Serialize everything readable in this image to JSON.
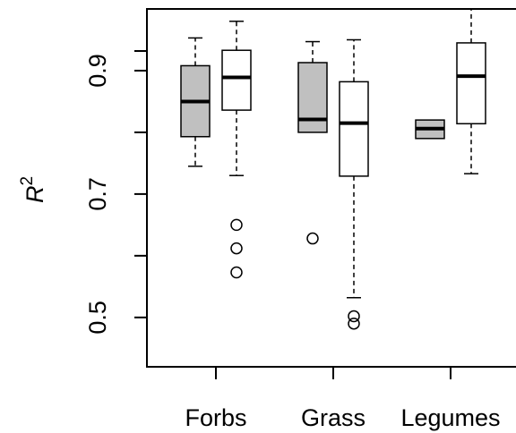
{
  "chart_data": {
    "type": "boxplot",
    "ylabel_base": "R",
    "ylabel_sup": "2",
    "ylim": [
      0.42,
      1.0
    ],
    "yticks": [
      0.5,
      0.7,
      0.9
    ],
    "ytick_labels": [
      "0.5",
      "0.7",
      "0.9"
    ],
    "categories": [
      "Forbs",
      "Grass",
      "Legumes"
    ],
    "colors": {
      "gray_box": "#c0c0c0",
      "white_box": "#ffffff",
      "stroke": "#000000"
    },
    "boxes": [
      {
        "category": "Forbs",
        "fill": "gray",
        "whisker_low": 0.745,
        "q1": 0.793,
        "median": 0.85,
        "q3": 0.908,
        "whisker_high": 0.953,
        "outliers": []
      },
      {
        "category": "Forbs",
        "fill": "white",
        "whisker_low": 0.73,
        "q1": 0.836,
        "median": 0.889,
        "q3": 0.933,
        "whisker_high": 0.98,
        "outliers": [
          0.65,
          0.612,
          0.573
        ]
      },
      {
        "category": "Grass",
        "fill": "gray",
        "whisker_low": 0.8,
        "q1": 0.8,
        "median": 0.821,
        "q3": 0.913,
        "whisker_high": 0.947,
        "outliers": [
          0.628
        ]
      },
      {
        "category": "Grass",
        "fill": "white",
        "whisker_low": 0.532,
        "q1": 0.729,
        "median": 0.815,
        "q3": 0.882,
        "whisker_high": 0.95,
        "outliers": [
          0.502,
          0.49
        ]
      },
      {
        "category": "Legumes",
        "fill": "gray",
        "whisker_low": 0.79,
        "q1": 0.79,
        "median": 0.806,
        "q3": 0.82,
        "whisker_high": 0.82,
        "outliers": []
      },
      {
        "category": "Legumes",
        "fill": "white",
        "whisker_low": 0.733,
        "q1": 0.814,
        "median": 0.891,
        "q3": 0.945,
        "whisker_high": 1.0,
        "outliers": []
      }
    ]
  }
}
